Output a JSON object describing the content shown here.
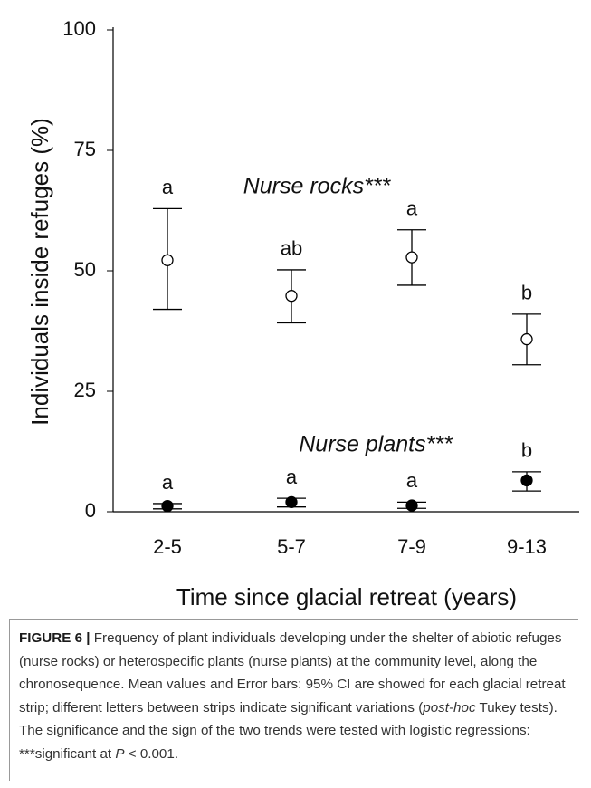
{
  "chart_data": {
    "type": "errorbar",
    "x_label": "Time since glacial retreat (years)",
    "y_label": "Individuals inside refuges (%)",
    "categories": [
      "2-5",
      "5-7",
      "7-9",
      "9-13"
    ],
    "ylim": [
      0,
      100
    ],
    "yticks": [
      0,
      25,
      50,
      75,
      100
    ],
    "series": [
      {
        "name": "Nurse rocks***",
        "color": "#000000",
        "marker": "open",
        "values": [
          52.2,
          44.8,
          52.8,
          35.8
        ],
        "lower": [
          42,
          39.2,
          47,
          30.5
        ],
        "upper": [
          62.9,
          50.2,
          58.5,
          41
        ],
        "letters": [
          "a",
          "ab",
          "a",
          "b"
        ]
      },
      {
        "name": "Nurse plants***",
        "color": "#000000",
        "marker": "filled",
        "values": [
          1.2,
          2,
          1.3,
          6.5
        ],
        "lower": [
          0.6,
          1,
          0.7,
          4.3
        ],
        "upper": [
          1.7,
          2.8,
          2,
          8.3
        ],
        "letters": [
          "a",
          "a",
          "a",
          "b"
        ]
      }
    ]
  },
  "caption": {
    "label": "FIGURE 6 |",
    "parts": [
      "Frequency of plant individuals developing under the shelter of abiotic refuges (nurse rocks) or heterospecific plants (nurse plants) at the community level, along the chronosequence. Mean values and Error bars: 95% CI are showed for each glacial retreat strip; different letters between strips indicate significant variations (",
      "post-hoc",
      " Tukey tests). The significance and the sign of the two trends were tested with logistic regressions: ***significant at ",
      "P",
      " < 0.001."
    ]
  }
}
